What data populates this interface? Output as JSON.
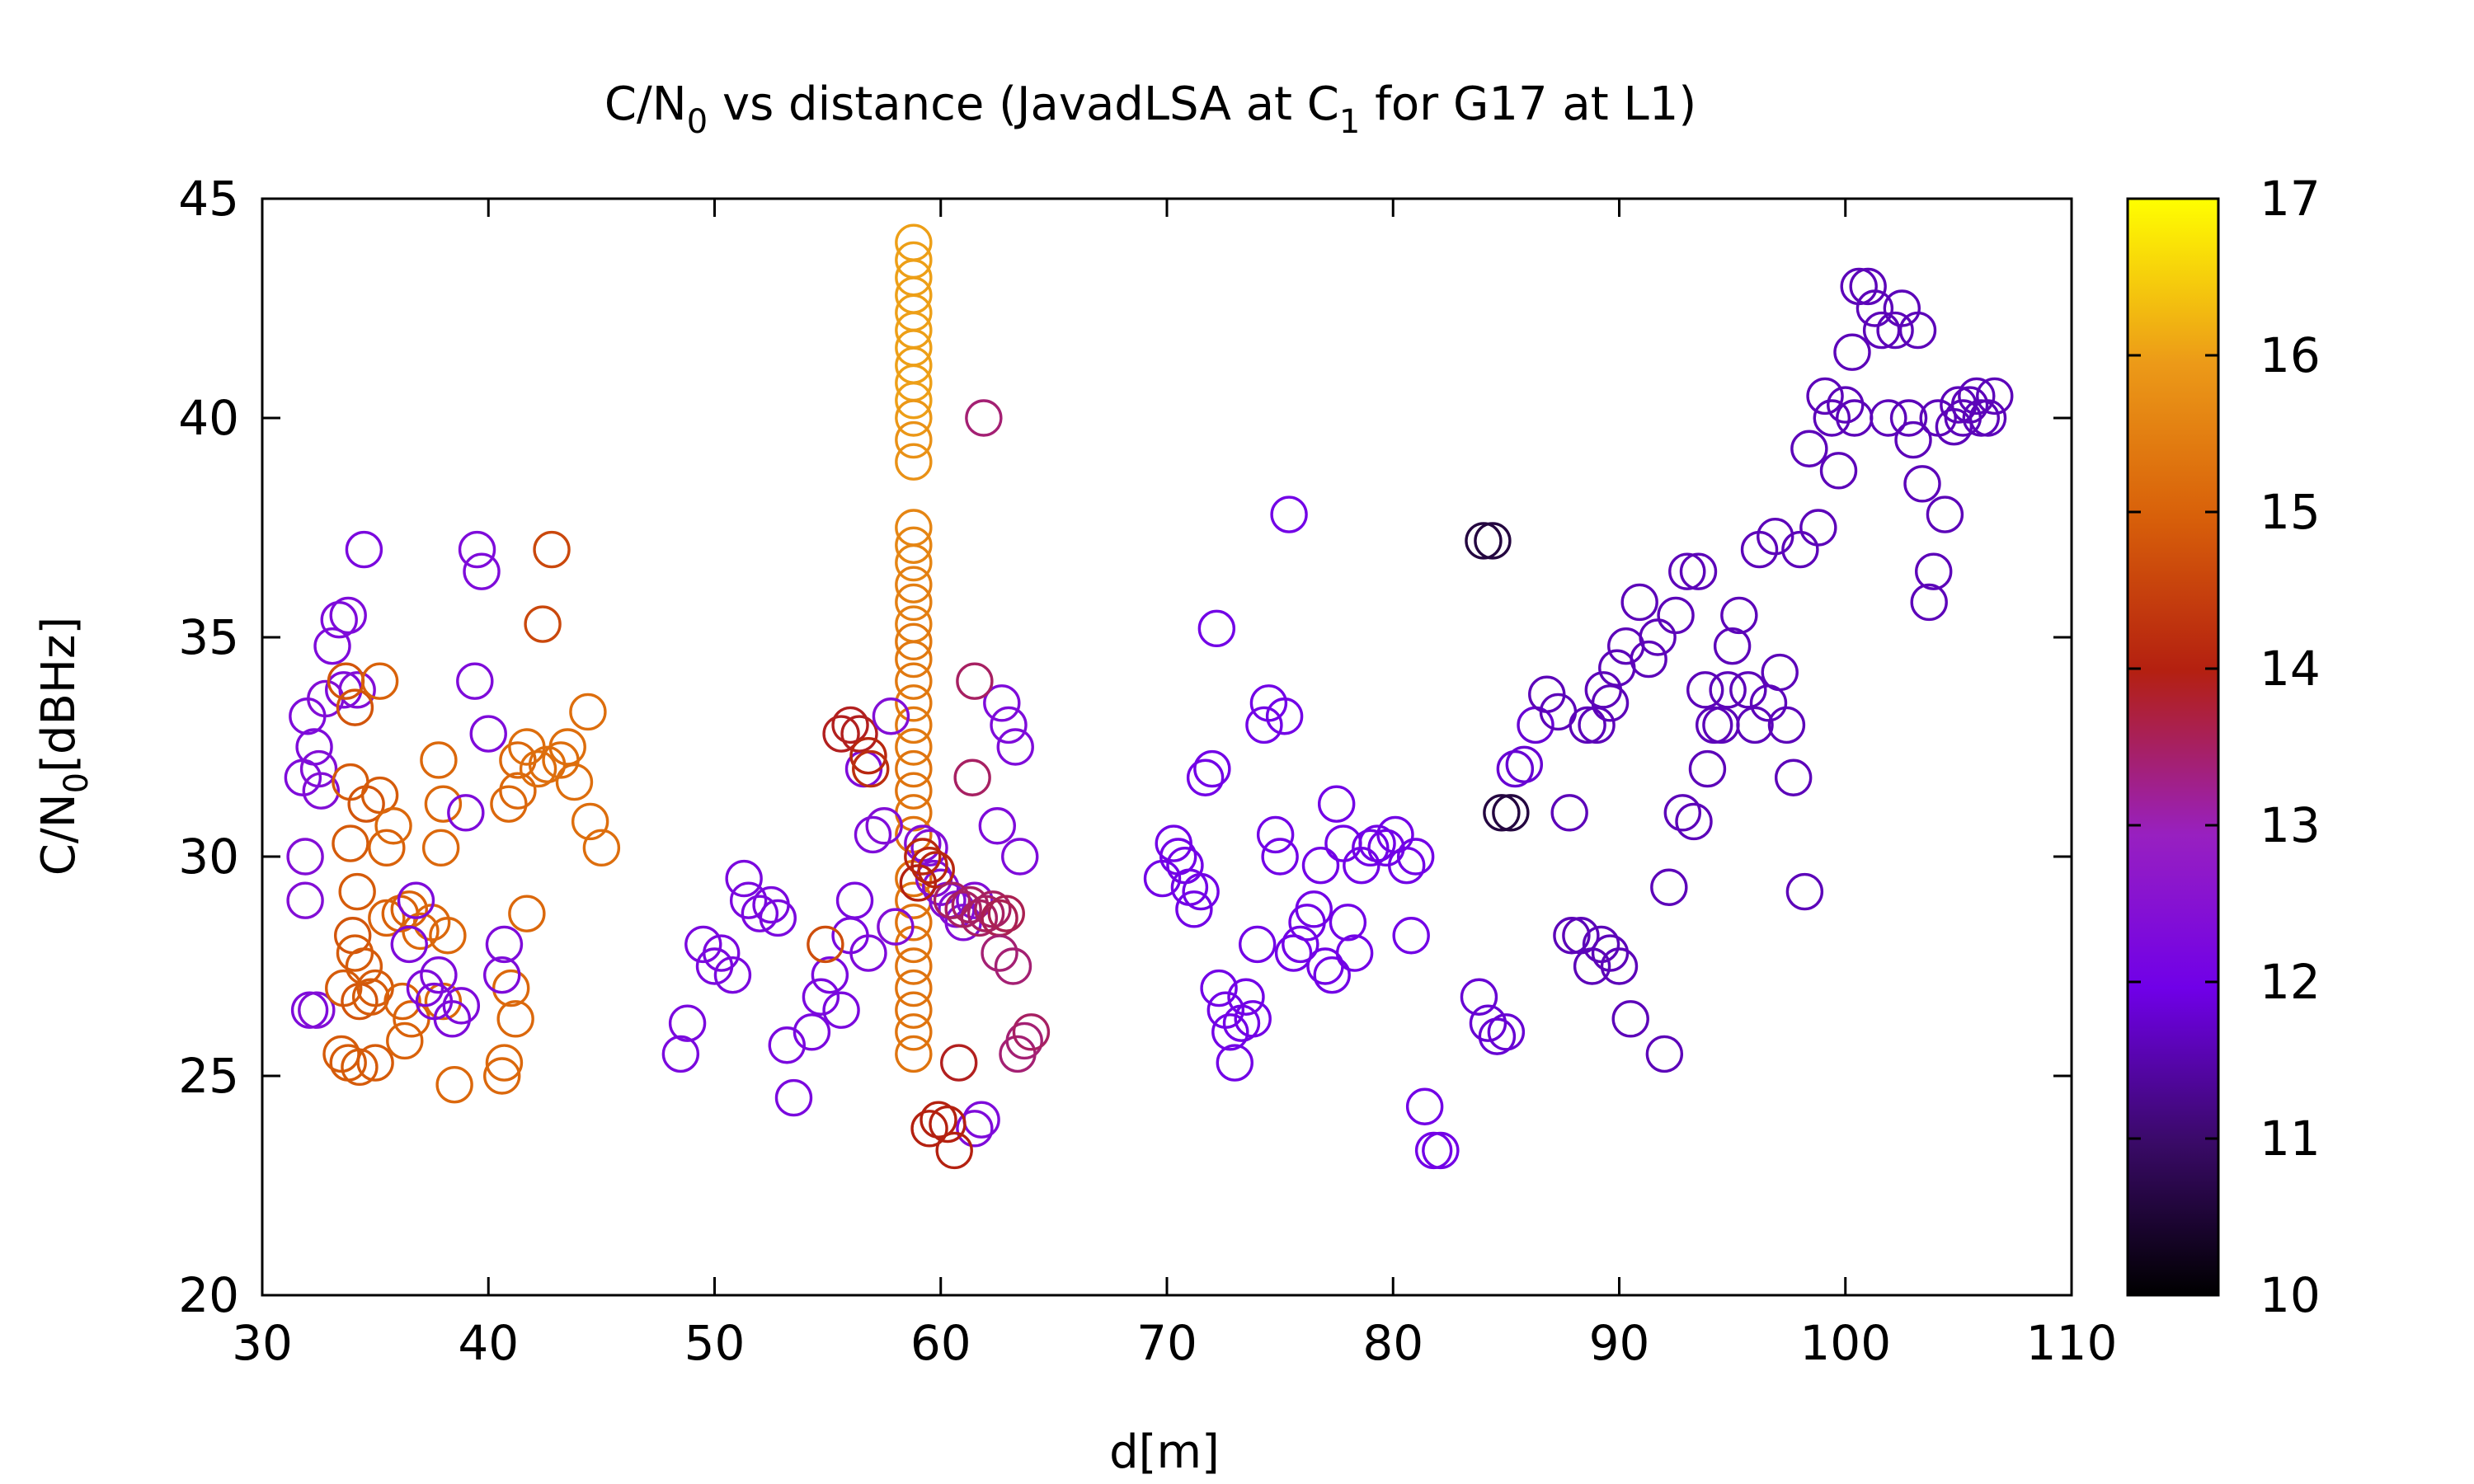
{
  "chart_data": {
    "type": "scatter",
    "title": {
      "main": "C/N",
      "sub0": "0",
      "mid": " vs distance (JavadLSA at C",
      "sub1": "1",
      "end": " for G17 at L1)"
    },
    "xlabel": "d[m]",
    "ylabel": {
      "main": "C/N",
      "sub": "0",
      "end": "[dBHz]"
    },
    "xlim": [
      30,
      110
    ],
    "ylim": [
      20,
      45
    ],
    "xticks": [
      "30",
      "40",
      "50",
      "60",
      "70",
      "80",
      "90",
      "100",
      "110"
    ],
    "yticks": [
      "20",
      "25",
      "30",
      "35",
      "40",
      "45"
    ],
    "colorbar": {
      "min": 10,
      "max": 17,
      "ticks": [
        "10",
        "11",
        "12",
        "13",
        "14",
        "15",
        "16",
        "17"
      ],
      "palette": "gnuplot black-purple-red-orange-yellow"
    },
    "marker": "open-circle",
    "points": [
      [
        32.0,
        33.2,
        12.3
      ],
      [
        32.3,
        32.5,
        12.3
      ],
      [
        31.8,
        31.8,
        12.3
      ],
      [
        32.5,
        32.0,
        12.4
      ],
      [
        32.6,
        31.5,
        12.4
      ],
      [
        32.8,
        33.6,
        12.4
      ],
      [
        33.1,
        34.8,
        12.3
      ],
      [
        33.4,
        35.4,
        12.3
      ],
      [
        33.8,
        35.5,
        12.3
      ],
      [
        33.6,
        33.8,
        12.3
      ],
      [
        34.2,
        33.8,
        12.4
      ],
      [
        34.5,
        37.0,
        12.2
      ],
      [
        31.9,
        30.0,
        12.4
      ],
      [
        31.9,
        29.0,
        12.4
      ],
      [
        32.1,
        26.5,
        12.3
      ],
      [
        32.4,
        26.5,
        12.4
      ],
      [
        33.7,
        34.0,
        14.8
      ],
      [
        34.1,
        33.4,
        14.8
      ],
      [
        33.9,
        31.7,
        14.9
      ],
      [
        34.6,
        31.2,
        14.8
      ],
      [
        35.2,
        31.4,
        14.9
      ],
      [
        35.2,
        34.0,
        15.0
      ],
      [
        33.9,
        30.3,
        14.9
      ],
      [
        35.5,
        30.2,
        15.0
      ],
      [
        35.8,
        30.7,
        15.1
      ],
      [
        34.2,
        29.2,
        14.9
      ],
      [
        34.0,
        28.2,
        14.8
      ],
      [
        34.1,
        27.8,
        14.9
      ],
      [
        34.5,
        27.5,
        14.9
      ],
      [
        33.6,
        27.0,
        14.9
      ],
      [
        34.3,
        26.7,
        14.8
      ],
      [
        34.8,
        26.8,
        14.9
      ],
      [
        35.0,
        27.0,
        14.9
      ],
      [
        33.5,
        25.5,
        14.9
      ],
      [
        33.8,
        25.3,
        14.9
      ],
      [
        34.3,
        25.2,
        14.9
      ],
      [
        35.0,
        25.3,
        14.9
      ],
      [
        35.5,
        28.6,
        15.0
      ],
      [
        36.1,
        28.7,
        15.0
      ],
      [
        36.5,
        28.8,
        15.0
      ],
      [
        36.2,
        26.7,
        15.0
      ],
      [
        36.6,
        26.3,
        15.0
      ],
      [
        36.3,
        25.8,
        15.0
      ],
      [
        37.8,
        32.2,
        15.1
      ],
      [
        38.0,
        31.2,
        15.1
      ],
      [
        37.9,
        30.2,
        15.1
      ],
      [
        37.0,
        28.3,
        15.1
      ],
      [
        37.5,
        28.5,
        15.1
      ],
      [
        38.2,
        28.2,
        15.1
      ],
      [
        38.0,
        26.7,
        15.1
      ],
      [
        38.5,
        24.8,
        15.1
      ],
      [
        40.6,
        25.0,
        15.1
      ],
      [
        40.7,
        25.3,
        15.1
      ],
      [
        41.2,
        26.3,
        15.1
      ],
      [
        41.0,
        27.0,
        15.1
      ],
      [
        41.7,
        28.7,
        15.1
      ],
      [
        40.9,
        31.2,
        15.1
      ],
      [
        41.3,
        31.5,
        15.1
      ],
      [
        41.3,
        32.2,
        15.1
      ],
      [
        41.7,
        32.5,
        15.2
      ],
      [
        42.2,
        32.0,
        15.2
      ],
      [
        42.6,
        32.1,
        15.2
      ],
      [
        43.2,
        32.2,
        15.2
      ],
      [
        43.5,
        32.5,
        15.2
      ],
      [
        43.8,
        31.7,
        15.2
      ],
      [
        44.4,
        33.3,
        15.2
      ],
      [
        44.5,
        30.8,
        15.2
      ],
      [
        45.0,
        30.2,
        15.2
      ],
      [
        42.4,
        35.3,
        14.6
      ],
      [
        42.8,
        37.0,
        14.6
      ],
      [
        36.5,
        28.0,
        12.3
      ],
      [
        36.8,
        29.0,
        12.3
      ],
      [
        37.2,
        27.0,
        12.3
      ],
      [
        37.6,
        26.7,
        12.3
      ],
      [
        37.8,
        27.3,
        12.3
      ],
      [
        38.4,
        26.3,
        12.3
      ],
      [
        38.8,
        26.6,
        12.3
      ],
      [
        39.0,
        31.0,
        12.3
      ],
      [
        39.4,
        34.0,
        12.3
      ],
      [
        39.5,
        37.0,
        12.3
      ],
      [
        39.7,
        36.5,
        12.3
      ],
      [
        40.0,
        32.8,
        12.3
      ],
      [
        40.7,
        28.0,
        12.3
      ],
      [
        40.6,
        27.3,
        12.3
      ],
      [
        48.5,
        25.5,
        12.2
      ],
      [
        48.8,
        26.2,
        12.2
      ],
      [
        49.5,
        28.0,
        12.2
      ],
      [
        50.0,
        27.5,
        12.2
      ],
      [
        50.3,
        27.8,
        12.2
      ],
      [
        50.8,
        27.3,
        12.2
      ],
      [
        51.3,
        29.5,
        12.2
      ],
      [
        51.5,
        29.0,
        12.2
      ],
      [
        52.0,
        28.7,
        12.2
      ],
      [
        52.5,
        28.9,
        12.2
      ],
      [
        52.8,
        28.6,
        12.2
      ],
      [
        53.2,
        25.7,
        12.2
      ],
      [
        53.5,
        24.5,
        12.2
      ],
      [
        54.3,
        26.0,
        12.2
      ],
      [
        54.7,
        26.8,
        12.2
      ],
      [
        55.1,
        27.3,
        12.2
      ],
      [
        55.6,
        26.5,
        12.2
      ],
      [
        56.2,
        29.0,
        12.2
      ],
      [
        56.0,
        28.2,
        12.2
      ],
      [
        56.6,
        32.0,
        12.3
      ],
      [
        56.8,
        27.8,
        12.3
      ],
      [
        57.0,
        30.5,
        12.3
      ],
      [
        54.9,
        28.0,
        14.7
      ],
      [
        55.6,
        32.8,
        13.9
      ],
      [
        56.0,
        33.0,
        13.9
      ],
      [
        56.4,
        32.8,
        13.9
      ],
      [
        56.8,
        32.3,
        14.1
      ],
      [
        56.9,
        32.0,
        14.2
      ],
      [
        58.8,
        44.0,
        16.0
      ],
      [
        58.8,
        43.6,
        16.0
      ],
      [
        58.8,
        43.2,
        16.0
      ],
      [
        58.8,
        42.8,
        16.0
      ],
      [
        58.8,
        42.4,
        16.0
      ],
      [
        58.8,
        42.0,
        16.0
      ],
      [
        58.8,
        41.6,
        16.0
      ],
      [
        58.8,
        41.2,
        16.0
      ],
      [
        58.8,
        40.8,
        16.0
      ],
      [
        58.8,
        40.4,
        16.0
      ],
      [
        58.8,
        40.0,
        15.9
      ],
      [
        58.8,
        39.5,
        15.8
      ],
      [
        58.8,
        39.0,
        15.8
      ],
      [
        58.8,
        37.5,
        15.6
      ],
      [
        58.8,
        37.1,
        15.6
      ],
      [
        58.8,
        36.7,
        15.6
      ],
      [
        58.8,
        36.2,
        15.5
      ],
      [
        58.8,
        35.8,
        15.5
      ],
      [
        58.8,
        35.3,
        15.5
      ],
      [
        58.8,
        34.9,
        15.4
      ],
      [
        58.8,
        34.5,
        15.4
      ],
      [
        58.8,
        34.0,
        15.4
      ],
      [
        58.8,
        33.5,
        15.4
      ],
      [
        58.8,
        33.0,
        15.4
      ],
      [
        58.8,
        32.5,
        15.4
      ],
      [
        58.8,
        32.0,
        15.3
      ],
      [
        58.8,
        31.5,
        15.3
      ],
      [
        58.8,
        31.0,
        15.3
      ],
      [
        58.8,
        30.5,
        15.3
      ],
      [
        58.8,
        29.5,
        15.3
      ],
      [
        58.8,
        29.0,
        15.3
      ],
      [
        58.8,
        28.5,
        15.3
      ],
      [
        58.8,
        28.0,
        15.3
      ],
      [
        58.8,
        27.5,
        15.3
      ],
      [
        58.8,
        27.0,
        15.3
      ],
      [
        58.8,
        26.5,
        15.3
      ],
      [
        58.8,
        26.0,
        15.3
      ],
      [
        58.8,
        25.5,
        15.3
      ],
      [
        57.8,
        33.2,
        12.4
      ],
      [
        57.5,
        30.7,
        12.4
      ],
      [
        58.0,
        28.4,
        12.4
      ],
      [
        59.2,
        30.3,
        12.4
      ],
      [
        59.5,
        30.2,
        12.4
      ],
      [
        59.7,
        29.5,
        12.4
      ],
      [
        60.0,
        29.3,
        12.4
      ],
      [
        60.3,
        29.0,
        12.4
      ],
      [
        60.7,
        28.8,
        12.4
      ],
      [
        61.0,
        28.5,
        12.4
      ],
      [
        61.5,
        29.0,
        12.4
      ],
      [
        61.8,
        24.0,
        12.3
      ],
      [
        61.5,
        23.8,
        12.3
      ],
      [
        62.5,
        30.7,
        12.3
      ],
      [
        62.7,
        33.5,
        12.3
      ],
      [
        63.0,
        33.0,
        12.3
      ],
      [
        63.3,
        32.5,
        12.3
      ],
      [
        63.5,
        30.0,
        12.3
      ],
      [
        59.2,
        30.0,
        14.1
      ],
      [
        59.5,
        29.8,
        14.1
      ],
      [
        59.8,
        29.7,
        14.1
      ],
      [
        59.0,
        29.4,
        14.0
      ],
      [
        60.5,
        29.0,
        13.5
      ],
      [
        61.0,
        28.8,
        13.5
      ],
      [
        61.3,
        28.9,
        13.5
      ],
      [
        61.7,
        28.6,
        13.5
      ],
      [
        62.0,
        28.7,
        13.5
      ],
      [
        62.3,
        28.8,
        13.5
      ],
      [
        62.6,
        28.6,
        13.6
      ],
      [
        62.9,
        28.7,
        13.6
      ],
      [
        62.6,
        27.8,
        13.4
      ],
      [
        63.2,
        27.5,
        13.4
      ],
      [
        63.4,
        25.5,
        13.4
      ],
      [
        63.7,
        25.8,
        13.4
      ],
      [
        64.0,
        26.0,
        13.5
      ],
      [
        59.5,
        23.8,
        14.0
      ],
      [
        59.9,
        24.0,
        14.0
      ],
      [
        60.3,
        23.9,
        14.0
      ],
      [
        60.6,
        23.3,
        14.0
      ],
      [
        60.8,
        25.3,
        13.9
      ],
      [
        61.4,
        31.8,
        13.5
      ],
      [
        61.5,
        34.0,
        13.5
      ],
      [
        61.9,
        40.0,
        13.4
      ],
      [
        69.8,
        29.5,
        12.0
      ],
      [
        70.3,
        30.3,
        12.0
      ],
      [
        70.5,
        30.0,
        12.0
      ],
      [
        70.8,
        29.8,
        12.0
      ],
      [
        71.0,
        29.3,
        12.0
      ],
      [
        71.2,
        28.8,
        12.0
      ],
      [
        71.5,
        29.2,
        12.0
      ],
      [
        71.7,
        31.8,
        12.0
      ],
      [
        72.0,
        32.0,
        12.0
      ],
      [
        72.2,
        35.2,
        12.0
      ],
      [
        72.3,
        27.0,
        12.0
      ],
      [
        72.6,
        26.5,
        12.0
      ],
      [
        72.8,
        26.0,
        12.0
      ],
      [
        73.0,
        25.3,
        12.0
      ],
      [
        73.3,
        26.2,
        12.0
      ],
      [
        73.5,
        26.8,
        12.0
      ],
      [
        73.8,
        26.3,
        12.0
      ],
      [
        74.0,
        28.0,
        12.0
      ],
      [
        74.3,
        33.0,
        12.0
      ],
      [
        74.5,
        33.5,
        12.0
      ],
      [
        74.8,
        30.5,
        12.0
      ],
      [
        75.0,
        30.0,
        12.0
      ],
      [
        75.2,
        33.2,
        12.0
      ],
      [
        75.4,
        37.8,
        12.0
      ],
      [
        75.6,
        27.8,
        12.0
      ],
      [
        75.9,
        28.0,
        12.0
      ],
      [
        76.2,
        28.5,
        12.0
      ],
      [
        76.5,
        28.8,
        12.0
      ],
      [
        76.8,
        29.8,
        12.0
      ],
      [
        77.0,
        27.5,
        12.0
      ],
      [
        77.3,
        27.3,
        12.0
      ],
      [
        77.5,
        31.2,
        12.0
      ],
      [
        77.8,
        30.3,
        12.0
      ],
      [
        78.0,
        28.5,
        12.0
      ],
      [
        78.3,
        27.8,
        12.0
      ],
      [
        78.6,
        29.8,
        12.0
      ],
      [
        79.0,
        30.2,
        12.0
      ],
      [
        79.3,
        30.3,
        12.0
      ],
      [
        79.7,
        30.2,
        12.0
      ],
      [
        80.1,
        30.5,
        12.0
      ],
      [
        80.6,
        29.8,
        12.0
      ],
      [
        81.0,
        30.0,
        12.0
      ],
      [
        80.8,
        28.2,
        12.0
      ],
      [
        81.4,
        24.3,
        12.0
      ],
      [
        81.8,
        23.3,
        12.0
      ],
      [
        82.1,
        23.3,
        12.0
      ],
      [
        84.0,
        37.2,
        10.6
      ],
      [
        84.4,
        37.2,
        10.6
      ],
      [
        84.8,
        31.0,
        10.6
      ],
      [
        85.2,
        31.0,
        10.6
      ],
      [
        83.8,
        26.8,
        11.8
      ],
      [
        84.2,
        26.2,
        11.8
      ],
      [
        84.6,
        25.9,
        11.8
      ],
      [
        85.0,
        26.0,
        11.8
      ],
      [
        85.4,
        32.0,
        11.8
      ],
      [
        85.8,
        32.1,
        11.8
      ],
      [
        86.3,
        33.0,
        11.8
      ],
      [
        86.8,
        33.7,
        11.6
      ],
      [
        87.3,
        33.3,
        11.6
      ],
      [
        87.8,
        31.0,
        11.6
      ],
      [
        87.9,
        28.2,
        11.6
      ],
      [
        88.3,
        28.2,
        11.6
      ],
      [
        88.6,
        33.0,
        11.6
      ],
      [
        89.0,
        33.0,
        11.6
      ],
      [
        89.3,
        33.8,
        11.6
      ],
      [
        89.6,
        33.5,
        11.6
      ],
      [
        88.8,
        27.5,
        11.6
      ],
      [
        89.2,
        28.0,
        11.6
      ],
      [
        89.6,
        27.8,
        11.6
      ],
      [
        90.0,
        27.5,
        11.6
      ],
      [
        89.9,
        34.3,
        11.6
      ],
      [
        90.3,
        34.8,
        11.6
      ],
      [
        90.5,
        26.3,
        11.6
      ],
      [
        90.9,
        35.8,
        11.6
      ],
      [
        91.3,
        34.5,
        11.6
      ],
      [
        91.7,
        35.0,
        11.6
      ],
      [
        92.0,
        25.5,
        11.6
      ],
      [
        92.2,
        29.3,
        11.6
      ],
      [
        92.5,
        35.5,
        11.6
      ],
      [
        92.8,
        31.0,
        11.6
      ],
      [
        93.0,
        36.5,
        11.6
      ],
      [
        93.3,
        30.8,
        11.6
      ],
      [
        93.5,
        36.5,
        11.6
      ],
      [
        93.8,
        33.8,
        11.6
      ],
      [
        93.9,
        32.0,
        11.6
      ],
      [
        94.2,
        33.0,
        11.6
      ],
      [
        94.5,
        33.0,
        11.6
      ],
      [
        94.8,
        33.8,
        11.6
      ],
      [
        95.0,
        34.8,
        11.6
      ],
      [
        95.3,
        35.5,
        11.6
      ],
      [
        95.7,
        33.8,
        11.6
      ],
      [
        96.0,
        33.0,
        11.6
      ],
      [
        96.2,
        37.0,
        11.6
      ],
      [
        96.6,
        33.5,
        11.6
      ],
      [
        96.9,
        37.3,
        11.6
      ],
      [
        97.1,
        34.2,
        11.6
      ],
      [
        97.4,
        33.0,
        11.6
      ],
      [
        97.7,
        31.8,
        11.6
      ],
      [
        98.0,
        37.0,
        11.6
      ],
      [
        98.2,
        29.2,
        11.6
      ],
      [
        98.4,
        39.3,
        11.6
      ],
      [
        98.8,
        37.5,
        11.6
      ],
      [
        99.1,
        40.5,
        11.6
      ],
      [
        99.4,
        40.0,
        11.6
      ],
      [
        99.7,
        38.8,
        11.6
      ],
      [
        100.0,
        40.3,
        11.6
      ],
      [
        100.4,
        40.0,
        11.6
      ],
      [
        100.6,
        43.0,
        11.6
      ],
      [
        101.0,
        43.0,
        11.6
      ],
      [
        101.3,
        42.5,
        11.6
      ],
      [
        101.6,
        42.0,
        11.6
      ],
      [
        101.9,
        40.0,
        11.6
      ],
      [
        102.2,
        42.0,
        11.6
      ],
      [
        102.5,
        42.5,
        11.6
      ],
      [
        102.8,
        40.0,
        11.6
      ],
      [
        103.0,
        39.5,
        11.6
      ],
      [
        103.2,
        42.0,
        11.6
      ],
      [
        103.4,
        38.5,
        11.6
      ],
      [
        103.7,
        35.8,
        11.6
      ],
      [
        103.9,
        36.5,
        11.6
      ],
      [
        104.1,
        40.0,
        11.6
      ],
      [
        104.4,
        37.8,
        11.6
      ],
      [
        104.8,
        39.8,
        11.6
      ],
      [
        105.0,
        40.3,
        11.6
      ],
      [
        105.2,
        40.0,
        11.6
      ],
      [
        105.5,
        40.3,
        11.6
      ],
      [
        105.8,
        40.5,
        11.6
      ],
      [
        106.0,
        40.0,
        11.6
      ],
      [
        106.3,
        40.0,
        11.6
      ],
      [
        106.6,
        40.5,
        11.6
      ],
      [
        100.3,
        41.5,
        11.6
      ]
    ]
  }
}
